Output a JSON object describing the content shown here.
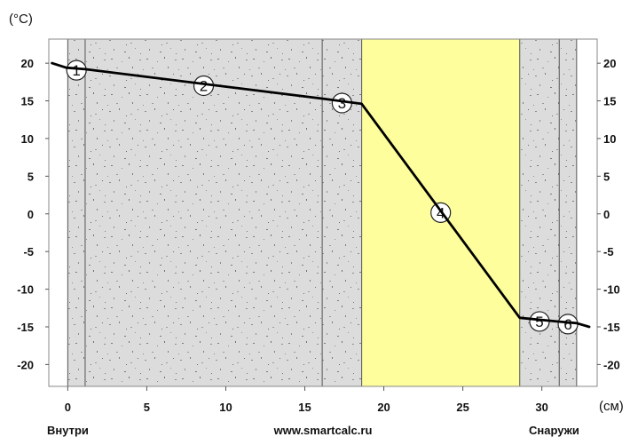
{
  "chart_data": {
    "type": "line",
    "y_unit": "(°C)",
    "x_unit": "(см)",
    "xlim": [
      -1.2,
      33.5
    ],
    "ylim": [
      -22.9,
      23.2
    ],
    "x_ticks": [
      0,
      5,
      10,
      15,
      20,
      25,
      30
    ],
    "y_ticks": [
      20,
      15,
      10,
      5,
      0,
      -5,
      -10,
      -15,
      -20
    ],
    "layers": [
      {
        "label": "1",
        "x_start": 0,
        "x_end": 1.1,
        "fill": "#dcdcdc"
      },
      {
        "label": "2",
        "x_start": 1.1,
        "x_end": 16.1,
        "fill": "#dcdcdc"
      },
      {
        "label": "3",
        "x_start": 16.1,
        "x_end": 18.6,
        "fill": "#dcdcdc"
      },
      {
        "label": "4",
        "x_start": 18.6,
        "x_end": 28.6,
        "fill": "#fefe9c"
      },
      {
        "label": "5",
        "x_start": 28.6,
        "x_end": 31.1,
        "fill": "#dcdcdc"
      },
      {
        "label": "6",
        "x_start": 31.1,
        "x_end": 32.2,
        "fill": "#dcdcdc"
      }
    ],
    "series": [
      {
        "x": [
          -1.0,
          -0.1,
          1.1,
          16.1,
          18.6,
          28.6,
          31.1,
          32.2,
          33.0
        ],
        "y": [
          20.0,
          19.4,
          19.2,
          15.3,
          14.6,
          -13.8,
          -14.3,
          -14.5,
          -15.0
        ]
      }
    ],
    "left_label": "Внутри",
    "center_label": "www.smartcalc.ru",
    "right_label": "Снаружи",
    "grid": false
  }
}
